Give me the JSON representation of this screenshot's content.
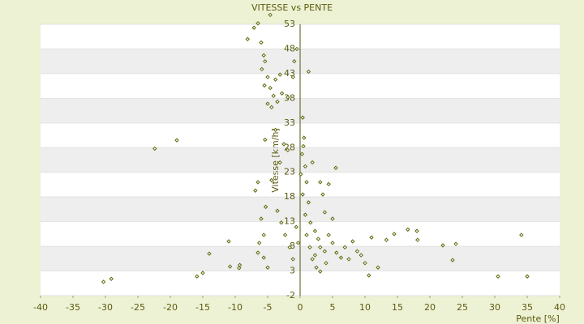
{
  "chart_data": {
    "type": "scatter",
    "title": "VITESSE vs PENTE",
    "x_label": "Pente [%]",
    "y_label": "Vitesse [km/h]",
    "xlim": [
      -40,
      40
    ],
    "xticks": [
      -40,
      -35,
      -30,
      -25,
      -20,
      -15,
      -10,
      -5,
      0,
      5,
      10,
      15,
      20,
      25,
      30,
      35,
      40
    ],
    "ylim": [
      -2,
      53
    ],
    "yticks": [
      -2,
      3,
      8,
      13,
      18,
      23,
      28,
      33,
      38,
      43,
      48,
      53
    ],
    "grid": true,
    "color": "#5c6b0e",
    "x": [
      -30.3,
      -29.1,
      -22.4,
      -19,
      -15.9,
      -15,
      -14,
      -11,
      -10.8,
      -9.3,
      -9.4,
      -8.1,
      -7.1,
      -6.5,
      -4.6,
      -6,
      -5.6,
      -5.4,
      -5.9,
      -5,
      -3.1,
      -3.8,
      -5.5,
      -4.6,
      -4.1,
      -5,
      -4.4,
      -3.5,
      -2.8,
      -1.9,
      -1.1,
      -0.9,
      -0.5,
      1.3,
      -5.4,
      -3.8,
      -2.5,
      -1.9,
      -3.1,
      -4.4,
      -6.5,
      -6.9,
      -5.3,
      -6,
      -5.6,
      -6.3,
      -6.5,
      -5.6,
      -5,
      -3.5,
      -2.9,
      -2.3,
      -1.6,
      -1.1,
      0.4,
      0.6,
      0.3,
      0.8,
      0.1,
      1,
      0.4,
      1.3,
      0.8,
      1.6,
      2.3,
      2.8,
      3.1,
      3.8,
      4,
      1.9,
      2.5,
      4.4,
      5,
      5.6,
      6.3,
      6.9,
      7.5,
      8.1,
      8.8,
      9.4,
      10,
      10.6,
      11,
      12,
      13.3,
      14.5,
      16.6,
      18,
      18.1,
      22,
      23.5,
      24,
      30.5,
      34.1,
      35,
      3.1,
      4.4,
      5.5,
      3.8,
      5,
      3.5,
      -0.6,
      -0.3,
      1,
      1.5,
      2.3,
      3.1,
      1.9,
      0.5
    ],
    "values": [
      0.8,
      1.4,
      27.8,
      29.5,
      1.9,
      2.6,
      6.5,
      9,
      3.9,
      4.2,
      3.6,
      50,
      52.3,
      53.2,
      54.9,
      49.3,
      46.7,
      45.5,
      43.9,
      42.3,
      42.8,
      41.8,
      40.6,
      40.1,
      38.5,
      36.9,
      36.2,
      37.3,
      39,
      38.2,
      42.3,
      45.5,
      48,
      43.4,
      29.6,
      31.6,
      28.7,
      27.5,
      25,
      21.4,
      21,
      19.3,
      16,
      13.6,
      10.3,
      8.7,
      6.7,
      5.7,
      3.7,
      15.2,
      12.8,
      10.3,
      7.8,
      5.4,
      34.1,
      30,
      26.7,
      24.2,
      22.6,
      21,
      18.5,
      16.9,
      14.4,
      12.8,
      11.1,
      9.5,
      7.8,
      7,
      4.6,
      5.4,
      3.7,
      10.3,
      8.7,
      6.7,
      5.7,
      7.8,
      5.4,
      9,
      7,
      6.2,
      4.6,
      2.1,
      9.8,
      3.7,
      9.3,
      10.5,
      11.4,
      11.1,
      9.3,
      8.2,
      5.2,
      8.5,
      1.9,
      10.3,
      1.9,
      21,
      20.6,
      23.9,
      14.9,
      13.6,
      18.5,
      11.9,
      8.7,
      10.3,
      7.8,
      6.2,
      2.9,
      25,
      28.3
    ]
  }
}
